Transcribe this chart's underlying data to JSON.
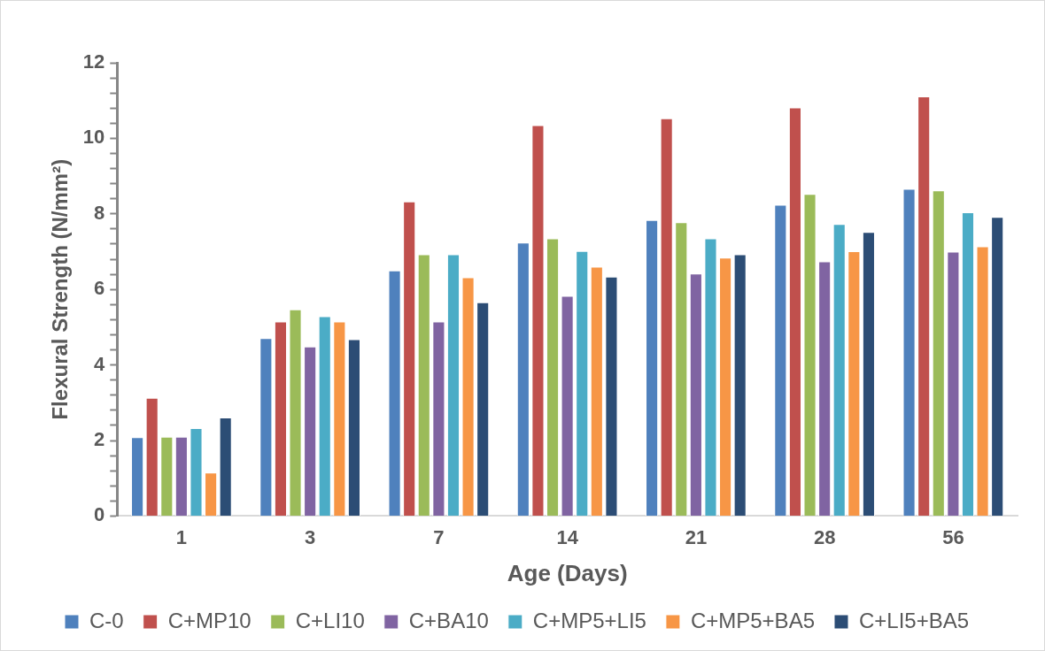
{
  "chart_data": {
    "type": "bar",
    "xlabel": "Age (Days)",
    "ylabel": "Flexural Strength (N/mm²)",
    "categories": [
      "1",
      "3",
      "7",
      "14",
      "21",
      "28",
      "56"
    ],
    "series": [
      {
        "name": "C-0",
        "color": "#4f81bd",
        "values": [
          2.09,
          4.71,
          6.5,
          7.24,
          7.84,
          8.24,
          8.66
        ]
      },
      {
        "name": "C+MP10",
        "color": "#c0504d",
        "values": [
          3.13,
          5.15,
          8.33,
          10.35,
          10.53,
          10.82,
          11.11
        ]
      },
      {
        "name": "C+LI10",
        "color": "#9bbb59",
        "values": [
          2.1,
          5.47,
          6.93,
          7.35,
          7.78,
          8.53,
          8.62
        ]
      },
      {
        "name": "C+BA10",
        "color": "#8064a2",
        "values": [
          2.1,
          4.49,
          5.15,
          5.83,
          6.42,
          6.74,
          7.0
        ]
      },
      {
        "name": "C+MP5+LI5",
        "color": "#4bacc6",
        "values": [
          2.33,
          5.29,
          6.93,
          7.02,
          7.35,
          7.73,
          8.04
        ]
      },
      {
        "name": "C+MP5+BA5",
        "color": "#f79646",
        "values": [
          1.15,
          5.15,
          6.32,
          6.6,
          6.84,
          7.01,
          7.14
        ]
      },
      {
        "name": "C+LI5+BA5",
        "color": "#2c4d75",
        "values": [
          2.61,
          4.68,
          5.66,
          6.34,
          6.93,
          7.52,
          7.92
        ]
      }
    ],
    "ylim": [
      0,
      12
    ],
    "yticks": [
      0,
      {
        "value": 0.4,
        "label": null
      },
      {
        "value": 0.8,
        "label": null
      },
      {
        "value": 1.2,
        "label": null
      },
      {
        "value": 1.6,
        "label": null
      },
      2,
      {
        "value": 2.4,
        "label": null
      },
      {
        "value": 2.8,
        "label": null
      },
      {
        "value": 3.2,
        "label": null
      },
      {
        "value": 3.6,
        "label": null
      },
      4,
      {
        "value": 4.4,
        "label": null
      },
      {
        "value": 4.8,
        "label": null
      },
      {
        "value": 5.2,
        "label": null
      },
      {
        "value": 5.6,
        "label": null
      },
      6,
      {
        "value": 6.4,
        "label": null
      },
      {
        "value": 6.8,
        "label": null
      },
      {
        "value": 7.2,
        "label": null
      },
      {
        "value": 7.6,
        "label": null
      },
      8,
      {
        "value": 8.4,
        "label": null
      },
      {
        "value": 8.8,
        "label": null
      },
      {
        "value": 9.2,
        "label": null
      },
      {
        "value": 9.6,
        "label": null
      },
      10,
      {
        "value": 10.4,
        "label": null
      },
      {
        "value": 10.8,
        "label": null
      },
      {
        "value": 11.2,
        "label": null
      },
      {
        "value": 11.6,
        "label": null
      },
      12
    ],
    "grid": false,
    "legend": "bottom"
  }
}
